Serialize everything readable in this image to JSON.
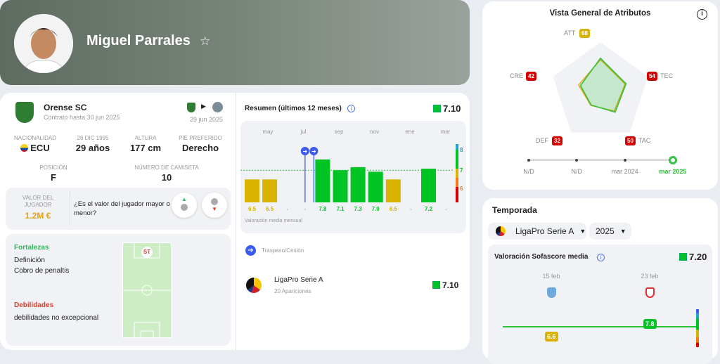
{
  "player": {
    "name": "Miguel Parrales",
    "favorite_icon": "star-outline-icon"
  },
  "club": {
    "name": "Orense SC",
    "contract": "Contrato hasta 30 jun 2025",
    "transfer_date": "29 jun 2025"
  },
  "stats": [
    {
      "label": "NACIONALIDAD",
      "value": "ECU"
    },
    {
      "label": "26 DIC 1995",
      "value": "29 años"
    },
    {
      "label": "ALTURA",
      "value": "177 cm"
    },
    {
      "label": "PIÉ PREFERIDO",
      "value": "Derecho"
    },
    {
      "label": "POSICIÓN",
      "value": "F"
    },
    {
      "label": "NÚMERO DE CAMISETA",
      "value": "10"
    }
  ],
  "market_value": {
    "label": "VALOR DEL JUGADOR",
    "value": "1.2M €",
    "question": "¿Es el valor del jugador mayor o menor?",
    "color": "#e8a317"
  },
  "strengths": {
    "title": "Fortalezas",
    "items": [
      "Definición",
      "Cobro de penaltis"
    ],
    "color": "#2eb85c"
  },
  "weaknesses": {
    "title": "Debilidades",
    "items": [
      "debilidades no excepcional"
    ],
    "color": "#d9412b"
  },
  "pitch": {
    "position": "ST"
  },
  "summary": {
    "title": "Resumen (últimos 12 meses)",
    "rating": "7.10",
    "footer": "Valoración media mensual",
    "chart_data": {
      "type": "bar",
      "month_labels": [
        "may",
        "jul",
        "sep",
        "nov",
        "ene",
        "mar"
      ],
      "values": [
        6.5,
        6.5,
        null,
        null,
        7.8,
        7.1,
        7.3,
        7.0,
        6.5,
        null,
        7.2,
        null
      ],
      "value_labels": [
        "6.5",
        "6.5",
        "-",
        "-",
        "7.8",
        "7.1",
        "7.3",
        "7.0",
        "6.5",
        "-",
        "7.2",
        "-"
      ],
      "average": 7.1,
      "scale_labels": [
        "8",
        "7",
        "6"
      ],
      "transfer_markers": [
        3,
        3.5
      ]
    }
  },
  "transfer": {
    "label": "Traspaso/Cesión"
  },
  "competition": {
    "name": "LigaPro Serie A",
    "appearances": "20 Apariciones",
    "rating": "7.10"
  },
  "attributes": {
    "title": "Vista General de Atributos",
    "chart_data": {
      "type": "radar",
      "max": 100,
      "axes": [
        {
          "name": "ATT",
          "value": 68,
          "color": "#d9b300"
        },
        {
          "name": "TEC",
          "value": 54,
          "color": "#d50000"
        },
        {
          "name": "TAC",
          "value": 50,
          "color": "#d50000"
        },
        {
          "name": "DEF",
          "value": 32,
          "color": "#d50000"
        },
        {
          "name": "CRE",
          "value": 42,
          "color": "#d50000"
        }
      ],
      "previous": [
        65,
        52,
        47,
        33,
        46
      ]
    },
    "timeline": [
      "N/D",
      "N/D",
      "mar 2024",
      "mar 2025"
    ]
  },
  "season": {
    "title": "Temporada",
    "league": "LigaPro Serie A",
    "year": "2025",
    "rating_title": "Valoración Sofascore media",
    "rating": "7.20",
    "matches": [
      {
        "date": "15 feb",
        "rating": "6.6",
        "color": "#d9b300"
      },
      {
        "date": "23 feb",
        "rating": "7.8",
        "color": "#00c424"
      }
    ]
  }
}
